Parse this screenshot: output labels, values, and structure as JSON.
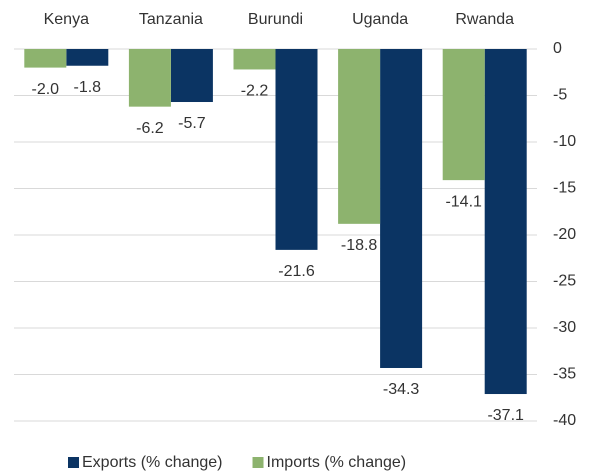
{
  "chart_data": {
    "type": "bar",
    "categories": [
      "Kenya",
      "Tanzania",
      "Burundi",
      "Uganda",
      "Rwanda"
    ],
    "series": [
      {
        "name": "Exports (% change)",
        "color": "#0b3463",
        "values": [
          -1.8,
          -5.7,
          -21.6,
          -34.3,
          -37.1
        ],
        "value_labels": [
          "-1.8",
          "-5.7",
          "-21.6",
          "-34.3",
          "-37.1"
        ]
      },
      {
        "name": "Imports (% change)",
        "color": "#8db36e",
        "values": [
          -2.0,
          -6.2,
          -2.2,
          -18.8,
          -14.1
        ],
        "value_labels": [
          "-2.0",
          "-6.2",
          "-2.2",
          "-18.8",
          "-14.1"
        ]
      }
    ],
    "ylim": [
      -40,
      0
    ],
    "yticks": [
      0,
      -5,
      -10,
      -15,
      -20,
      -25,
      -30,
      -35,
      -40
    ],
    "grid": true
  }
}
